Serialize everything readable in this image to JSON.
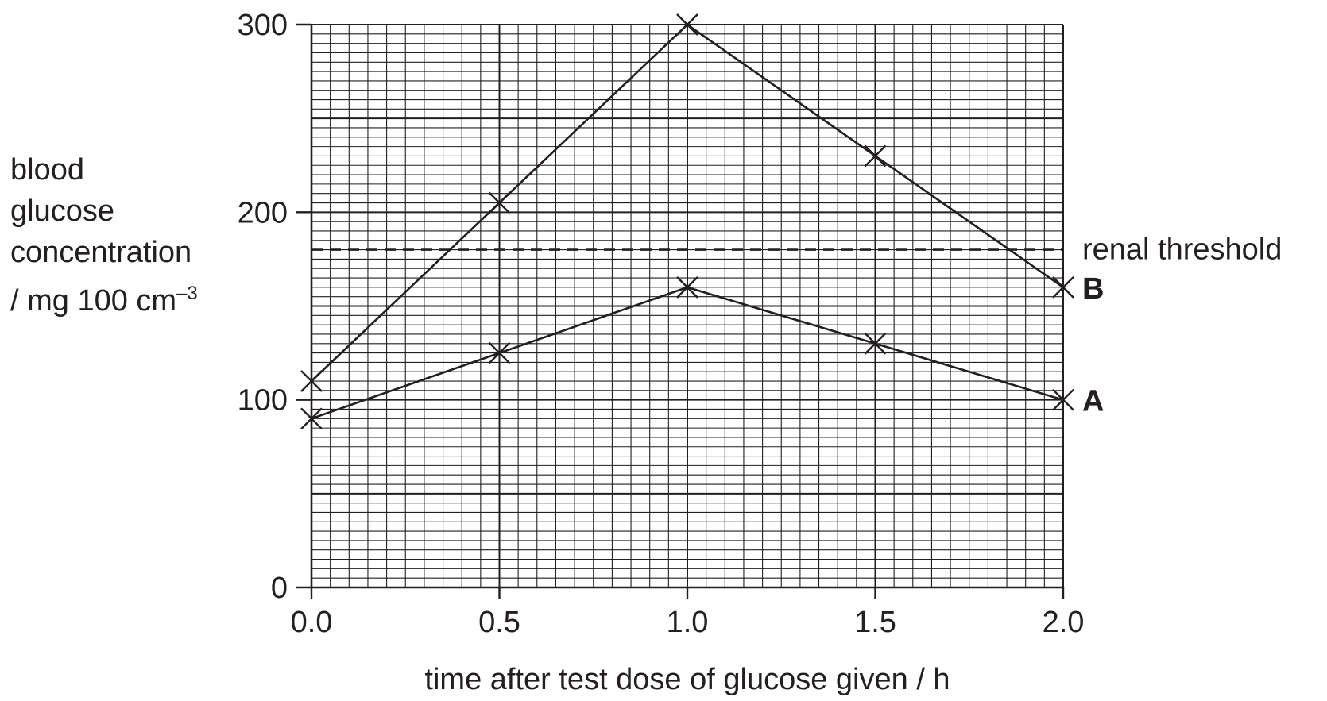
{
  "chart_data": {
    "type": "line",
    "title": "",
    "xlabel": "time after test dose of glucose given / h",
    "ylabel": {
      "lines": [
        "blood",
        "glucose",
        "concentration"
      ],
      "unit": "/ mg 100 cm",
      "unit_exponent": "–3"
    },
    "xlim": [
      0,
      2.0
    ],
    "ylim": [
      0,
      300
    ],
    "x_ticks": [
      0.0,
      0.5,
      1.0,
      1.5,
      2.0
    ],
    "x_tick_labels": [
      "0.0",
      "0.5",
      "1.0",
      "1.5",
      "2.0"
    ],
    "y_ticks": [
      0,
      100,
      200,
      300
    ],
    "y_tick_labels": [
      "0",
      "100",
      "200",
      "300"
    ],
    "grid": true,
    "series": [
      {
        "name": "A",
        "x": [
          0.0,
          0.5,
          1.0,
          1.5,
          2.0
        ],
        "y": [
          90,
          125,
          160,
          130,
          100
        ]
      },
      {
        "name": "B",
        "x": [
          0.0,
          0.5,
          1.0,
          1.5,
          2.0
        ],
        "y": [
          110,
          205,
          300,
          230,
          160
        ]
      }
    ],
    "reference_line": {
      "label": "renal threshold",
      "y": 180,
      "style": "dashed"
    },
    "colors": {
      "ink": "#231f20",
      "background": "#ffffff"
    }
  }
}
